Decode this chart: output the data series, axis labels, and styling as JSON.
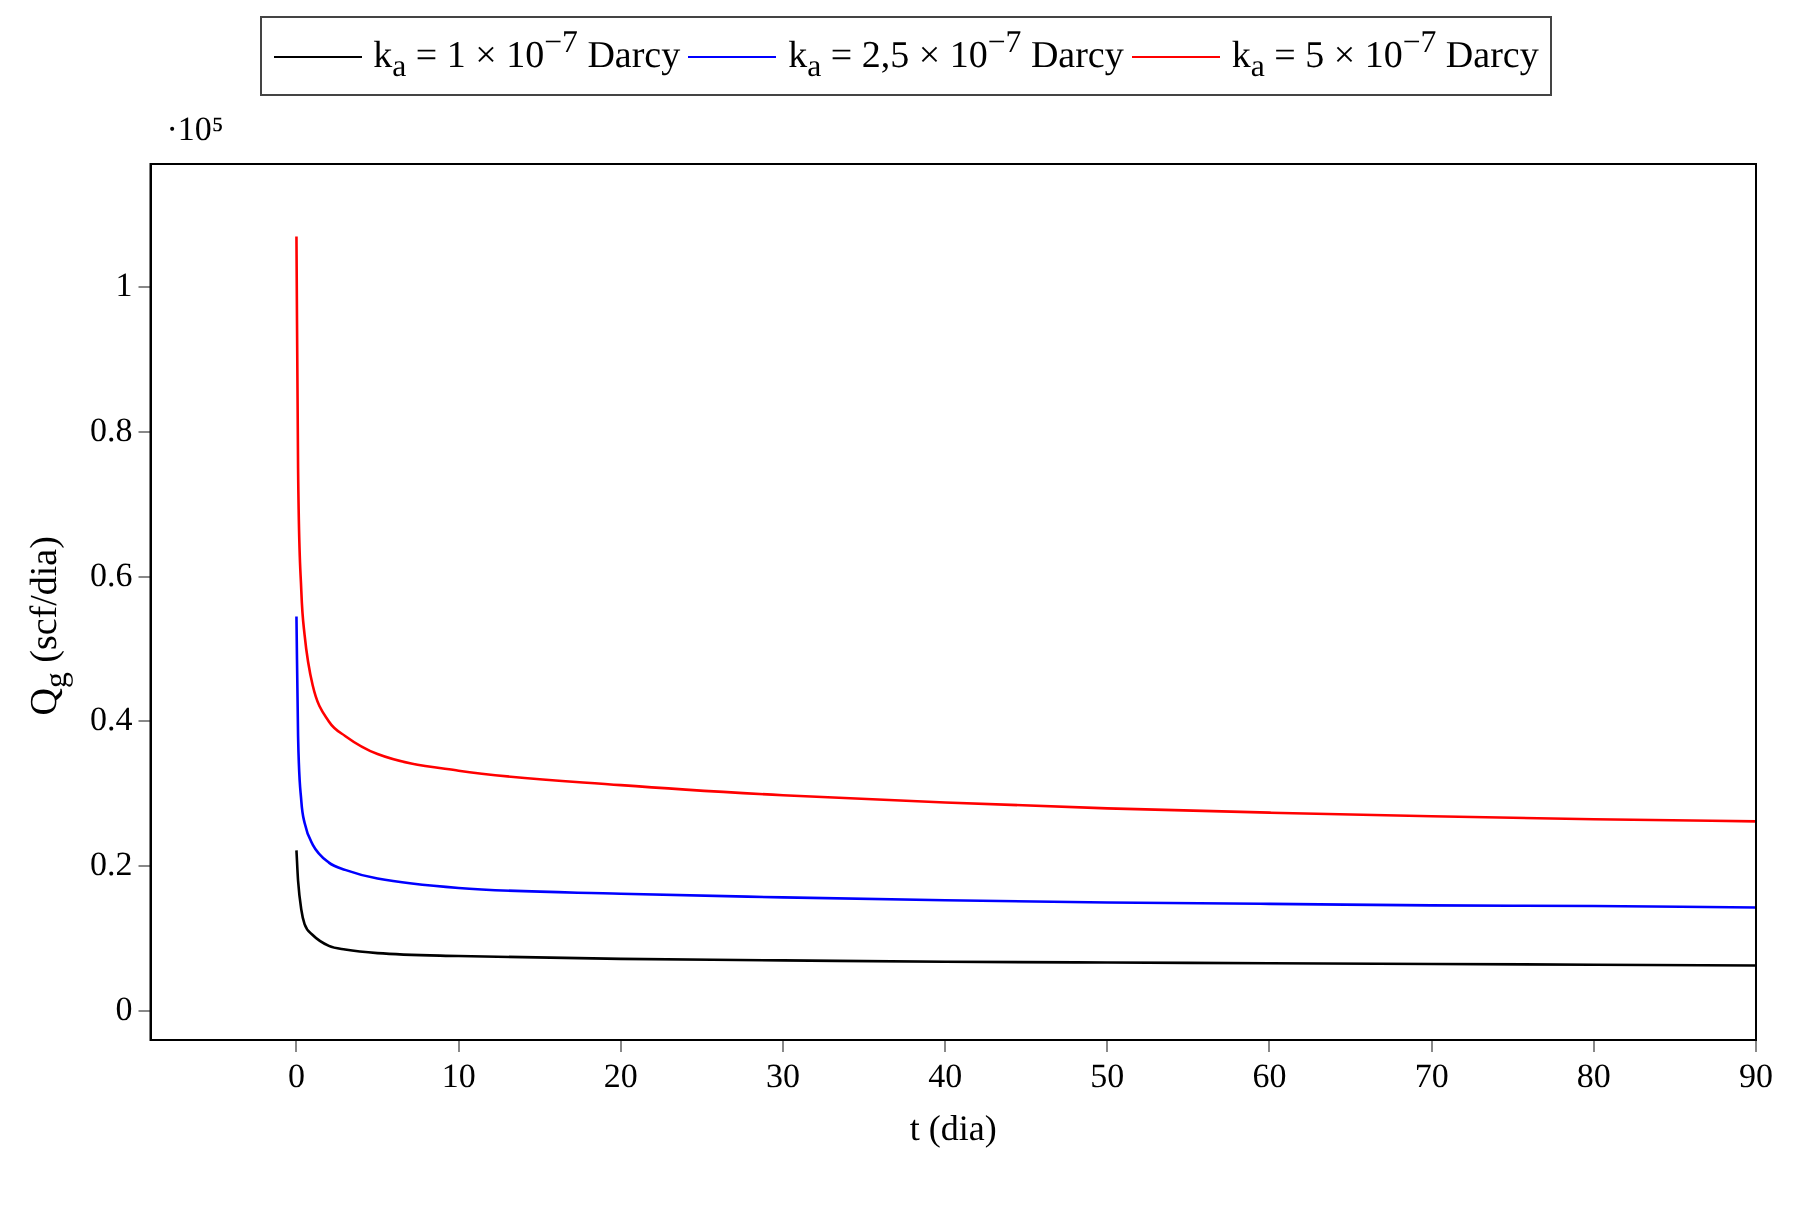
{
  "chart_data": {
    "type": "line",
    "xlabel": "t (dia)",
    "ylabel": "Q$_{g}$ (scf/dia)",
    "annotations": [
      "·10⁵"
    ],
    "xlim": [
      -9,
      90
    ],
    "xticks": [
      0,
      10,
      20,
      30,
      40,
      50,
      60,
      70,
      80,
      90
    ],
    "ylim": [
      -0.04,
      1.17
    ],
    "yticks": [
      0,
      0.2,
      0.4,
      0.6,
      0.8,
      1
    ],
    "grid": false,
    "legend": "top",
    "marker": "none",
    "line_style": "solid",
    "x": [
      0,
      0.1,
      0.3,
      0.5,
      1,
      2,
      3,
      5,
      10,
      20,
      30,
      40,
      50,
      60,
      70,
      80,
      90
    ],
    "series": [
      {
        "name": "k$_{a}$ = 1 × 10$^{−7}$ Darcy",
        "color": "#000000",
        "values": [
          0.222,
          0.18,
          0.14,
          0.12,
          0.105,
          0.09,
          0.085,
          0.08,
          0.076,
          0.072,
          0.07,
          0.068,
          0.067,
          0.066,
          0.065,
          0.064,
          0.063
        ]
      },
      {
        "name": "k$_{a}$ = 2,5 × 10$^{−7}$ Darcy",
        "color": "#0000ff",
        "values": [
          0.545,
          0.38,
          0.29,
          0.26,
          0.23,
          0.205,
          0.195,
          0.183,
          0.17,
          0.162,
          0.157,
          0.153,
          0.15,
          0.148,
          0.146,
          0.145,
          0.143
        ]
      },
      {
        "name": "k$_{a}$ = 5 × 10$^{−7}$ Darcy",
        "color": "#ff0000",
        "values": [
          1.07,
          0.75,
          0.58,
          0.52,
          0.45,
          0.4,
          0.38,
          0.355,
          0.332,
          0.312,
          0.298,
          0.288,
          0.28,
          0.274,
          0.269,
          0.265,
          0.262
        ]
      }
    ]
  }
}
